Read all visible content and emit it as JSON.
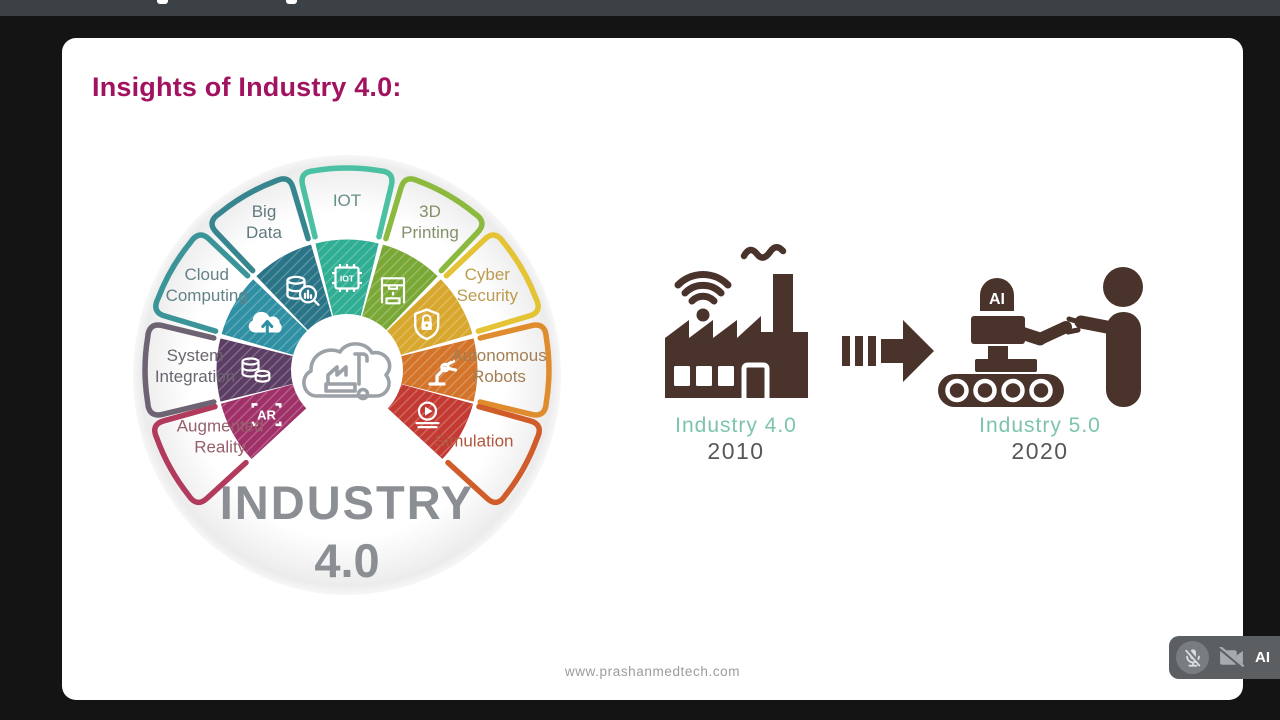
{
  "window": {
    "top_bar_note": "clipped browser bar with two partial white text marks"
  },
  "slide": {
    "title": "Insights of Industry 4.0:",
    "title_color": "#a2135f",
    "footer_url": "www.prashanmedtech.com",
    "wheel": {
      "center_line1": "INDUSTRY",
      "center_line2": "4.0",
      "center_text_color": "#8b8f93",
      "center_icon": "cloud-factory-icon",
      "segments": [
        {
          "id": "big-data",
          "label": [
            "Big",
            "Data"
          ],
          "angle": -30,
          "arc_color": "#37858e",
          "fill_color": "#2a7487",
          "label_color": "#627a7e",
          "icon": "bar-analytics-icon"
        },
        {
          "id": "iot",
          "label": [
            "IOT"
          ],
          "angle": 0,
          "arc_color": "#4cc0a2",
          "fill_color": "#2fae93",
          "label_color": "#64918a",
          "icon": "iot-chip-icon"
        },
        {
          "id": "3d-printing",
          "label": [
            "3D",
            "Printing"
          ],
          "angle": 30,
          "arc_color": "#8cba3e",
          "fill_color": "#7aa836",
          "label_color": "#83906a",
          "icon": "3d-printer-icon"
        },
        {
          "id": "cyber-security",
          "label": [
            "Cyber",
            "Security"
          ],
          "angle": 60,
          "arc_color": "#e4c334",
          "fill_color": "#d8a72e",
          "label_color": "#bb9c4f",
          "icon": "shield-lock-icon"
        },
        {
          "id": "autonomous-robots",
          "label": [
            "Autonomous",
            "Robots"
          ],
          "angle": 90,
          "arc_color": "#df8c2f",
          "fill_color": "#d3742a",
          "label_color": "#a37e52",
          "icon": "robot-arm-icon"
        },
        {
          "id": "simulation",
          "label": [
            "Simulation"
          ],
          "angle": 119,
          "arc_color": "#d05c29",
          "fill_color": "#c33a33",
          "label_color": "#b3573c",
          "icon": "simulation-play-icon"
        },
        {
          "id": "augmented-reality",
          "label": [
            "Augmented",
            "Reality"
          ],
          "angle": -119,
          "arc_color": "#b13a5d",
          "fill_color": "#a03168",
          "label_color": "#95606b",
          "icon": "ar-brackets-icon"
        },
        {
          "id": "system-integration",
          "label": [
            "System",
            "Integration"
          ],
          "angle": -90,
          "arc_color": "#6d6372",
          "fill_color": "#5c3e64",
          "label_color": "#6a656e",
          "icon": "database-sync-icon"
        },
        {
          "id": "cloud-computing",
          "label": [
            "Cloud",
            "Computing"
          ],
          "angle": -60,
          "arc_color": "#3b9598",
          "fill_color": "#2f8fa3",
          "label_color": "#648288",
          "icon": "cloud-upload-icon"
        }
      ]
    },
    "evolution": {
      "from": {
        "icon": "smart-factory-icon",
        "title": "Industry 4.0",
        "year": "2010"
      },
      "arrow_icon": "right-arrow-icon",
      "to": {
        "icon": "robot-human-handshake-icon",
        "robot_head_label": "AI",
        "title": "Industry 5.0",
        "year": "2020"
      },
      "title_color": "#7cc4ad",
      "year_color": "#545956",
      "icon_color": "#4a332b"
    }
  },
  "call_overlay": {
    "mic_icon": "mic-off-icon",
    "camera_icon": "camera-off-icon",
    "participant_label": "AI"
  }
}
